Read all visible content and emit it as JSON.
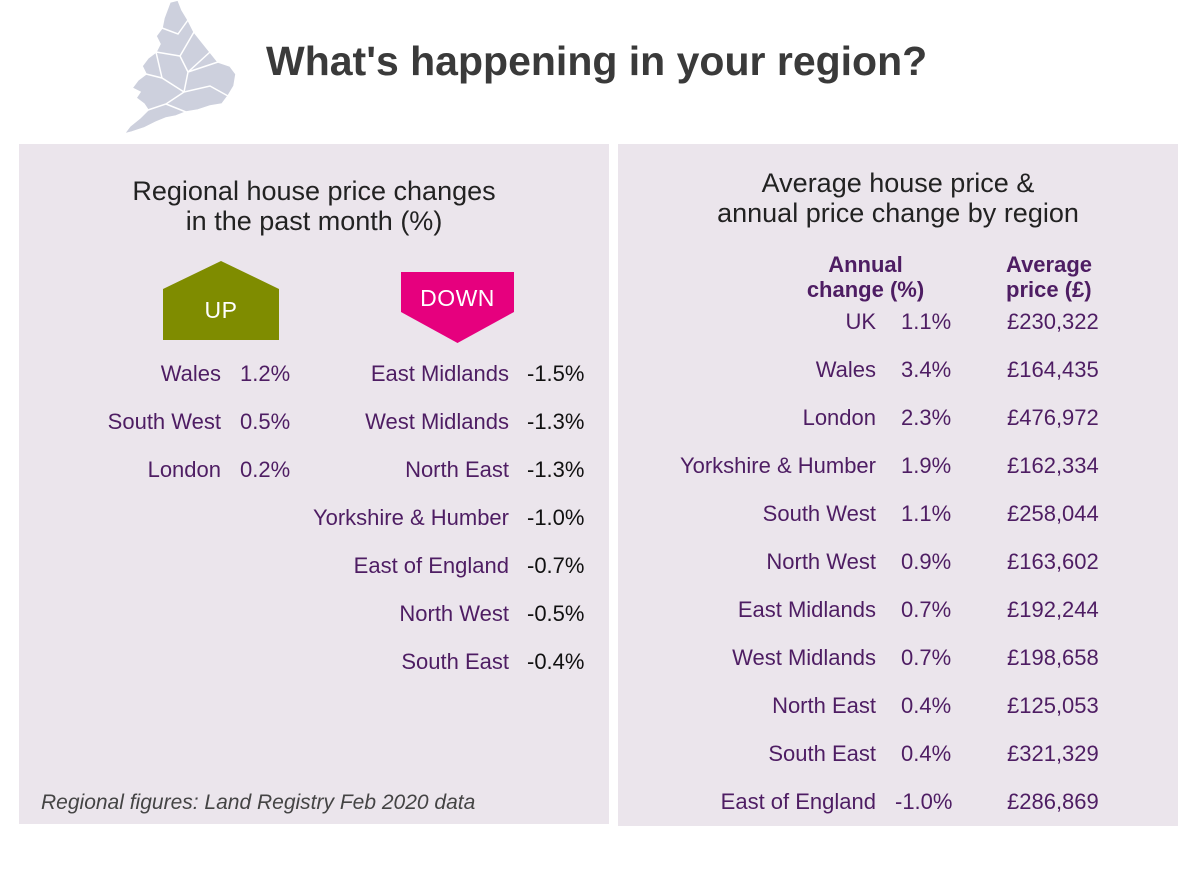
{
  "title": "What's happening in your region?",
  "colors": {
    "panel_bg": "#ebe5ec",
    "region_text": "#4e1d63",
    "up_badge": "#7f8c00",
    "down_badge": "#e6007e",
    "map_fill": "#cdd0dd"
  },
  "left_panel": {
    "heading_line1": "Regional house price changes",
    "heading_line2": "in the past month (%)",
    "up_label": "UP",
    "down_label": "DOWN",
    "source": "Regional figures: Land Registry Feb 2020 data"
  },
  "right_panel": {
    "heading_line1": "Average house price &",
    "heading_line2": "annual price change by region",
    "col_annual_line1": "Annual",
    "col_annual_line2": "change (%)",
    "col_price_line1": "Average",
    "col_price_line2": "price (£)"
  },
  "chart_data": [
    {
      "type": "table",
      "title": "Regional house price changes in the past month (%)",
      "series": [
        {
          "name": "UP",
          "categories": [
            "Wales",
            "South West",
            "London"
          ],
          "values": [
            1.2,
            0.5,
            0.2
          ],
          "labels": [
            "1.2%",
            "0.5%",
            "0.2%"
          ]
        },
        {
          "name": "DOWN",
          "categories": [
            "East Midlands",
            "West Midlands",
            "North East",
            "Yorkshire & Humber",
            "East of England",
            "North West",
            "South East"
          ],
          "values": [
            -1.5,
            -1.3,
            -1.3,
            -1.0,
            -0.7,
            -0.5,
            -0.4
          ],
          "labels": [
            "-1.5%",
            "-1.3%",
            "-1.3%",
            "-1.0%",
            "-0.7%",
            "-0.5%",
            "-0.4%"
          ]
        }
      ]
    },
    {
      "type": "table",
      "title": "Average house price & annual price change by region",
      "columns": [
        "Annual change (%)",
        "Average price (£)"
      ],
      "rows": [
        {
          "region": "UK",
          "annual_change": "1.1%",
          "average_price": "£230,322"
        },
        {
          "region": "Wales",
          "annual_change": "3.4%",
          "average_price": "£164,435"
        },
        {
          "region": "London",
          "annual_change": "2.3%",
          "average_price": "£476,972"
        },
        {
          "region": "Yorkshire & Humber",
          "annual_change": "1.9%",
          "average_price": "£162,334"
        },
        {
          "region": "South West",
          "annual_change": "1.1%",
          "average_price": "£258,044"
        },
        {
          "region": "North West",
          "annual_change": "0.9%",
          "average_price": "£163,602"
        },
        {
          "region": "East Midlands",
          "annual_change": "0.7%",
          "average_price": "£192,244"
        },
        {
          "region": "West Midlands",
          "annual_change": "0.7%",
          "average_price": "£198,658"
        },
        {
          "region": "North East",
          "annual_change": "0.4%",
          "average_price": "£125,053"
        },
        {
          "region": "South East",
          "annual_change": "0.4%",
          "average_price": "£321,329"
        },
        {
          "region": "East of England",
          "annual_change": "-1.0%",
          "average_price": "£286,869"
        }
      ]
    }
  ]
}
